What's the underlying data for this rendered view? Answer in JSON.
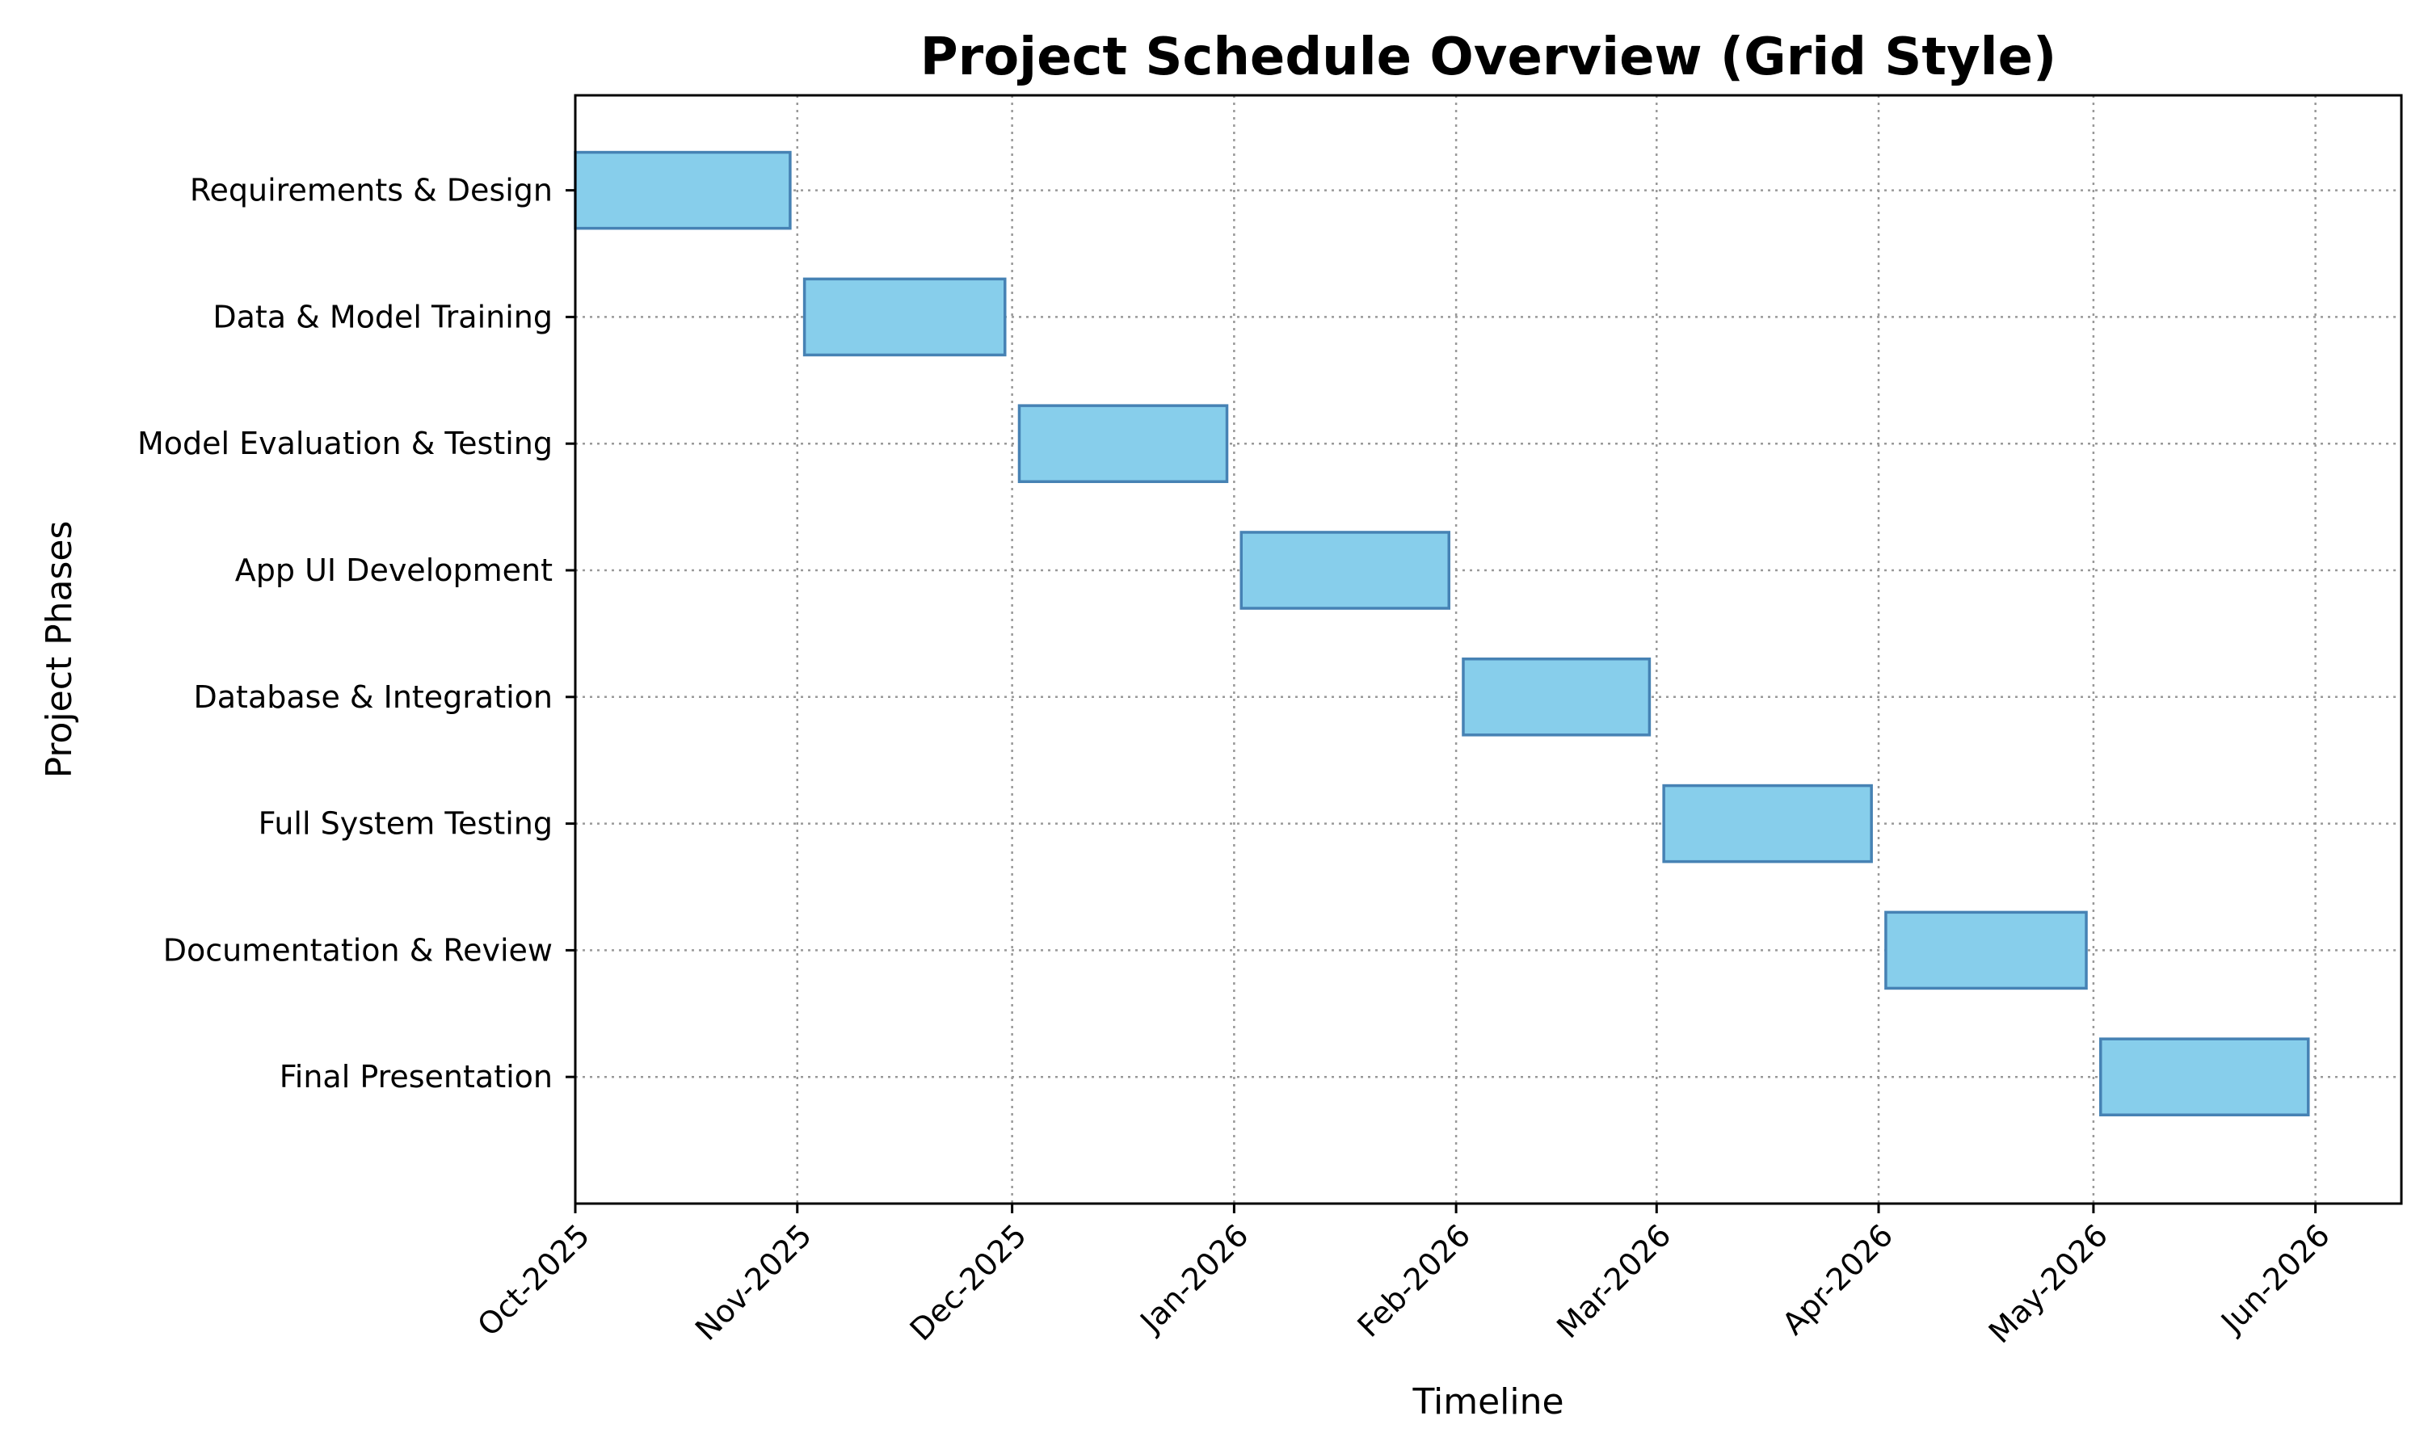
{
  "chart_data": {
    "type": "bar",
    "orientation": "horizontal",
    "title": "Project Schedule Overview (Grid Style)",
    "xlabel": "Timeline",
    "ylabel": "Project Phases",
    "x_axis": "date",
    "xlim": [
      "2025-10-01",
      "2026-06-13"
    ],
    "xticks": [
      "Oct-2025",
      "Nov-2025",
      "Dec-2025",
      "Jan-2026",
      "Feb-2026",
      "Mar-2026",
      "Apr-2026",
      "May-2026",
      "Jun-2026"
    ],
    "xtick_dates": [
      "2025-10-01",
      "2025-11-01",
      "2025-12-01",
      "2026-01-01",
      "2026-02-01",
      "2026-03-01",
      "2026-04-01",
      "2026-05-01",
      "2026-06-01"
    ],
    "grid": true,
    "grid_style": "dotted",
    "bar_color": "#87CEEB",
    "bar_edge_color": "#4682B4",
    "tasks": [
      {
        "name": "Requirements & Design",
        "start": "2025-10-01",
        "end": "2025-10-31"
      },
      {
        "name": "Data & Model Training",
        "start": "2025-11-02",
        "end": "2025-11-30"
      },
      {
        "name": "Model Evaluation & Testing",
        "start": "2025-12-02",
        "end": "2025-12-31"
      },
      {
        "name": "App UI Development",
        "start": "2026-01-02",
        "end": "2026-01-31"
      },
      {
        "name": "Database & Integration",
        "start": "2026-02-02",
        "end": "2026-02-28"
      },
      {
        "name": "Full System Testing",
        "start": "2026-03-02",
        "end": "2026-03-31"
      },
      {
        "name": "Documentation & Review",
        "start": "2026-04-02",
        "end": "2026-04-30"
      },
      {
        "name": "Final Presentation",
        "start": "2026-05-02",
        "end": "2026-05-31"
      }
    ]
  }
}
